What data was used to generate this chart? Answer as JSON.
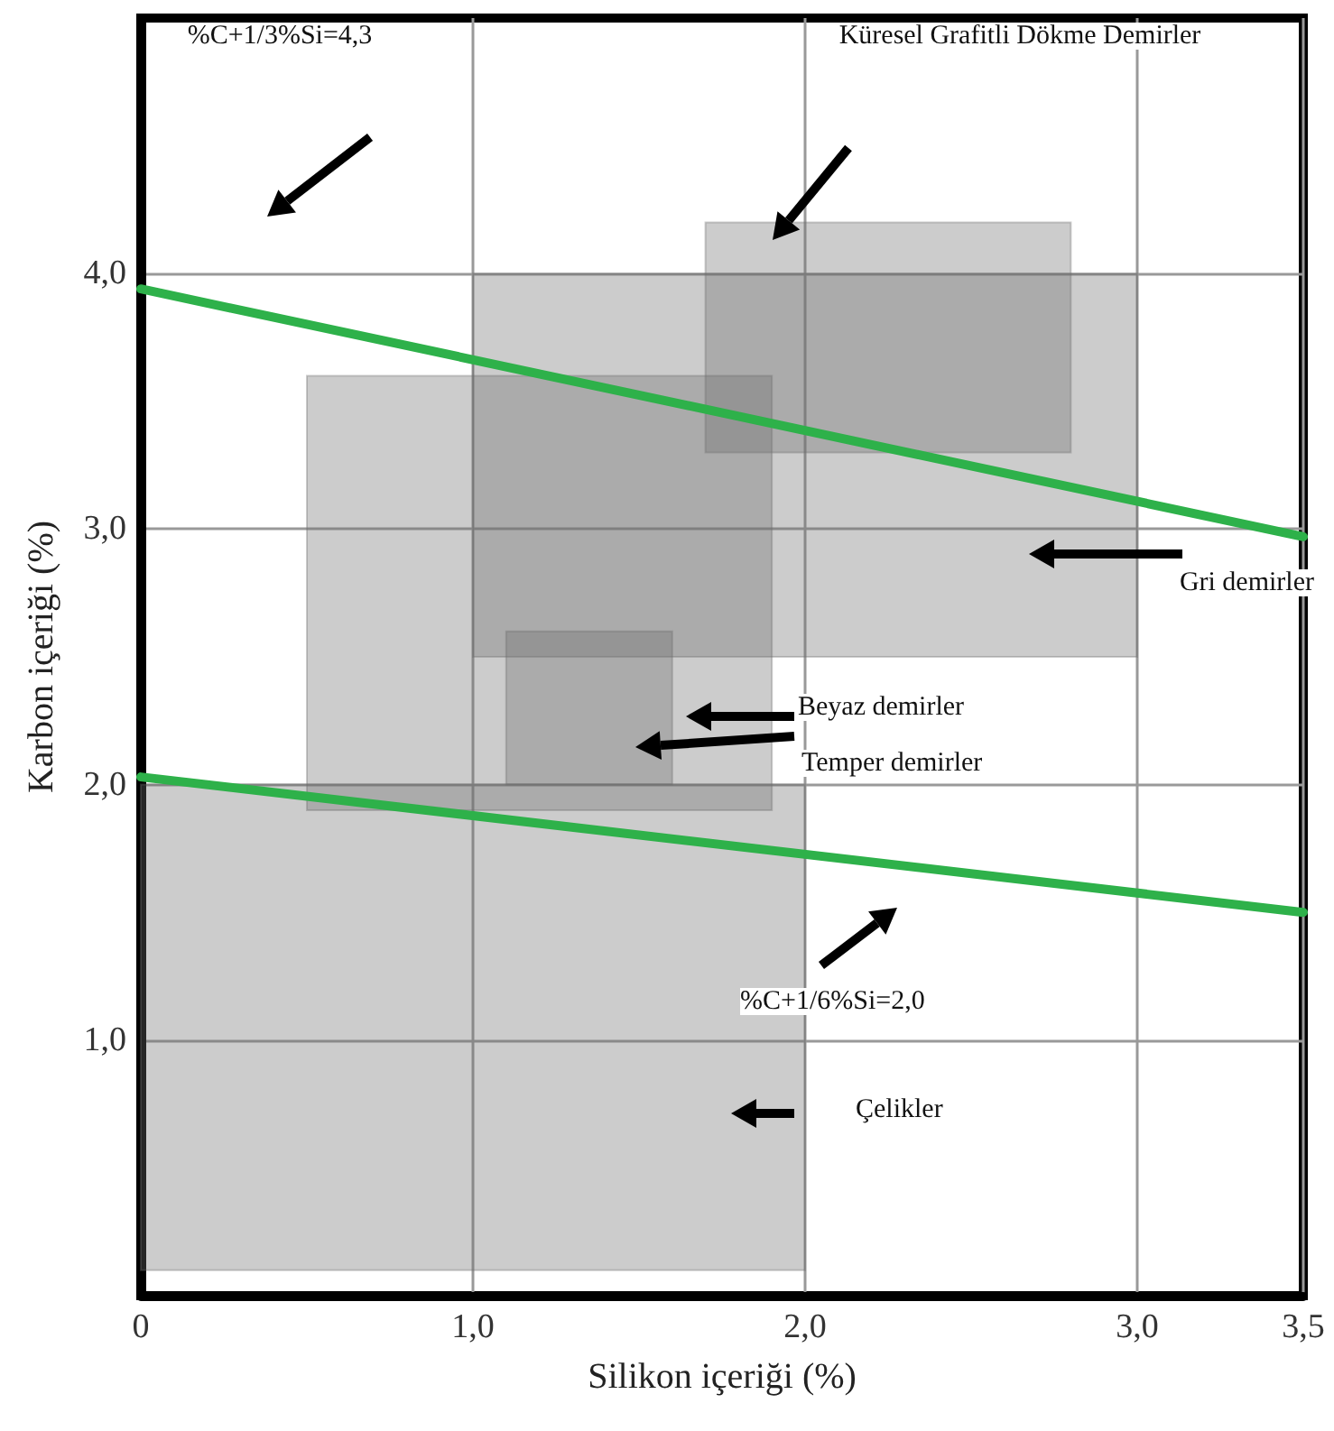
{
  "chart_data": {
    "type": "line",
    "xlabel": "Silikon içeriği (%)",
    "ylabel": "Karbon içeriği (%)",
    "xlim": [
      0,
      3.5
    ],
    "ylim": [
      0,
      5
    ],
    "xticks": [
      0,
      {
        "value": 1,
        "label": "1,0"
      },
      {
        "value": 2,
        "label": "2,0"
      },
      {
        "value": 3,
        "label": "3,0"
      },
      {
        "value": 3.5,
        "label": "3,5"
      }
    ],
    "yticks": [
      {
        "value": 1,
        "label": "1,0"
      },
      {
        "value": 2,
        "label": "2,0"
      },
      {
        "value": 3,
        "label": "3,0"
      },
      {
        "value": 4,
        "label": "4,0"
      }
    ],
    "grid": true,
    "marker": "none",
    "line_style": "solid",
    "series": [
      {
        "color": "#2eb14a",
        "x": [
          0,
          3.5
        ],
        "values": [
          3.94,
          2.97
        ]
      },
      {
        "color": "#2eb14a",
        "x": [
          0,
          3.5
        ],
        "values": [
          2.03,
          1.5
        ]
      },
      {
        "type": "area",
        "color": "#6e6e6e",
        "x": [
          0,
          0,
          2,
          2
        ],
        "values": [
          0.1,
          2.0,
          2.0,
          0.1
        ]
      },
      {
        "type": "area",
        "color": "#6e6e6e",
        "x": [
          0.5,
          0.5,
          1.9,
          1.9
        ],
        "values": [
          1.9,
          3.6,
          3.6,
          1.9
        ]
      },
      {
        "type": "area",
        "color": "#6e6e6e",
        "x": [
          1,
          1,
          3,
          3
        ],
        "values": [
          2.5,
          4.0,
          4.0,
          2.5
        ]
      },
      {
        "type": "area",
        "color": "#6e6e6e",
        "x": [
          1.1,
          1.1,
          1.6,
          1.6
        ],
        "values": [
          2.0,
          2.6,
          2.6,
          2.0
        ]
      },
      {
        "type": "area",
        "color": "#6e6e6e",
        "x": [
          1.7,
          1.7,
          2.8,
          2.8
        ],
        "values": [
          3.3,
          4.2,
          4.2,
          3.3
        ]
      }
    ],
    "annotations": [
      "%C+1/3%Si=4,3",
      "Küresel Grafitli Dökme Demirler",
      "Gri demirler",
      "Beyaz demirler",
      "Temper demirler",
      "%C+1/6%Si=2,0",
      "Çelikler"
    ]
  }
}
